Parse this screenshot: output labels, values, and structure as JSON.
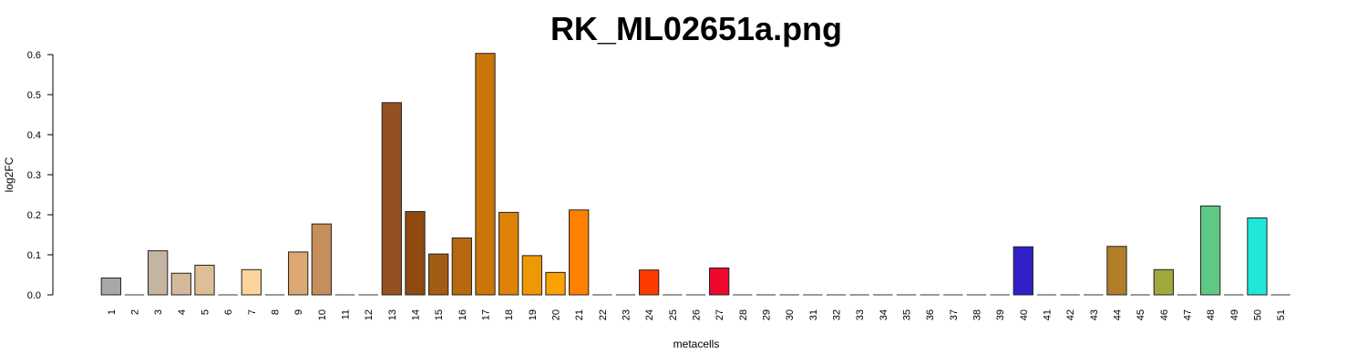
{
  "chart_data": {
    "type": "bar",
    "title": "RK_ML02651a.png",
    "xlabel": "metacells",
    "ylabel": "log2FC",
    "ylim": [
      0,
      0.6
    ],
    "yticks": [
      "0.0",
      "0.1",
      "0.2",
      "0.3",
      "0.4",
      "0.5",
      "0.6"
    ],
    "categories": [
      "1",
      "2",
      "3",
      "4",
      "5",
      "6",
      "7",
      "8",
      "9",
      "10",
      "11",
      "12",
      "13",
      "14",
      "15",
      "16",
      "17",
      "18",
      "19",
      "20",
      "21",
      "22",
      "23",
      "24",
      "25",
      "26",
      "27",
      "28",
      "29",
      "30",
      "31",
      "32",
      "33",
      "34",
      "35",
      "36",
      "37",
      "38",
      "39",
      "40",
      "41",
      "42",
      "43",
      "44",
      "45",
      "46",
      "47",
      "48",
      "49",
      "50",
      "51"
    ],
    "values": [
      0.042,
      0,
      0.11,
      0.054,
      0.074,
      0,
      0.063,
      0,
      0.107,
      0.177,
      0,
      0,
      0.48,
      0.208,
      0.102,
      0.142,
      0.603,
      0.206,
      0.098,
      0.056,
      0.212,
      0,
      0,
      0.062,
      0,
      0,
      0.067,
      0,
      0,
      0,
      0,
      0,
      0,
      0,
      0,
      0,
      0,
      0,
      0,
      0.12,
      0,
      0,
      0,
      0.121,
      0,
      0.063,
      0,
      0.222,
      0,
      0.192,
      0
    ],
    "colors": [
      "#a8a8a8",
      "#b0b0b0",
      "#c4b4a2",
      "#d4b89a",
      "#debd98",
      "#e6c6a0",
      "#fcd49c",
      "#e8b88a",
      "#dda871",
      "#c68e5c",
      "#a8602a",
      "#9a5a28",
      "#945020",
      "#8f4a10",
      "#a35c14",
      "#b8680f",
      "#c97508",
      "#dd8206",
      "#ee9806",
      "#fba102",
      "#ff8000",
      "#ff6a00",
      "#ff5000",
      "#ff3a00",
      "#f51818",
      "#ee1028",
      "#ee082c",
      "#c01838",
      "#a02040",
      "#802050",
      "#602060",
      "#502070",
      "#402080",
      "#3a2090",
      "#3320a0",
      "#3020b0",
      "#3020c0",
      "#3020c8",
      "#3020c8",
      "#3120c8",
      "#8a6a20",
      "#9a7222",
      "#a87a26",
      "#b37e2a",
      "#aa8c30",
      "#a1a83c",
      "#8ab84a",
      "#5ec886",
      "#40d0a8",
      "#20e8d8",
      "#30f0e0"
    ],
    "grid": false,
    "legend": "none"
  }
}
